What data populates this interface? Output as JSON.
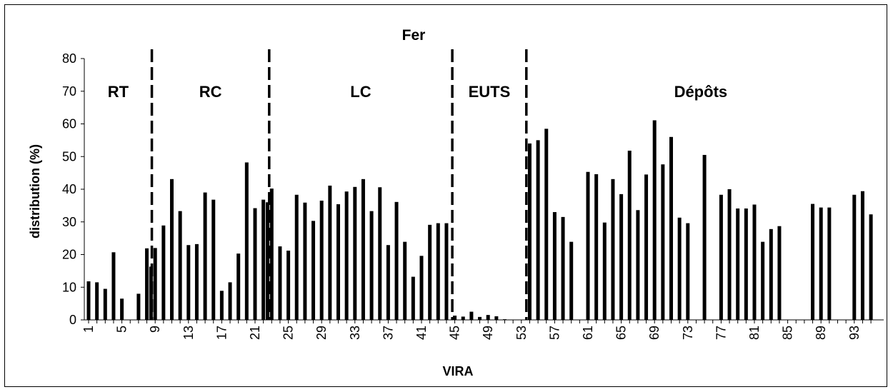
{
  "chart_data": {
    "type": "bar",
    "title": "Fer",
    "xlabel": "VIRA",
    "ylabel": "distribution (%)",
    "ylim": [
      0,
      80
    ],
    "yticks": [
      0,
      10,
      20,
      30,
      40,
      50,
      60,
      70,
      80
    ],
    "xlim": [
      1,
      95
    ],
    "xticks": [
      1,
      5,
      9,
      13,
      17,
      21,
      25,
      29,
      33,
      37,
      41,
      45,
      49,
      53,
      57,
      61,
      65,
      69,
      73,
      77,
      81,
      85,
      89,
      93
    ],
    "grid": false,
    "legend": "none",
    "bar_color": "#000000",
    "x": [
      1,
      2,
      3,
      4,
      5,
      7,
      8,
      8.5,
      9,
      10,
      11,
      12,
      13,
      14,
      15,
      16,
      17,
      18,
      19,
      20,
      21,
      22,
      22.5,
      23,
      24,
      25,
      26,
      27,
      28,
      29,
      30,
      31,
      32,
      33,
      34,
      35,
      36,
      37,
      38,
      39,
      40,
      41,
      42,
      43,
      44,
      45,
      46,
      47,
      48,
      49,
      50,
      51,
      52,
      53,
      54,
      55,
      56,
      57,
      58,
      59,
      61,
      62,
      63,
      64,
      65,
      66,
      67,
      68,
      69,
      70,
      71,
      72,
      73,
      75,
      77,
      78,
      79,
      80,
      81,
      82,
      83,
      84,
      88,
      89,
      90,
      93,
      94,
      95
    ],
    "values": [
      11.8,
      11.5,
      9.5,
      20.7,
      6.5,
      8.0,
      21.9,
      16.3,
      22.0,
      28.9,
      43.1,
      33.3,
      22.9,
      23.2,
      39.0,
      36.8,
      8.9,
      11.5,
      20.3,
      48.2,
      34.2,
      36.8,
      36.0,
      40.2,
      22.5,
      21.2,
      38.3,
      35.9,
      30.3,
      36.5,
      41.1,
      35.4,
      39.3,
      40.7,
      43.1,
      33.3,
      40.6,
      22.9,
      36.1,
      23.9,
      13.2,
      19.6,
      29.1,
      29.6,
      29.6,
      1.3,
      1.0,
      2.5,
      0.9,
      1.5,
      1.1,
      0.2,
      0.1,
      0.1,
      54.0,
      55.0,
      58.5,
      33.0,
      31.5,
      23.9,
      45.3,
      44.6,
      29.8,
      43.1,
      38.5,
      51.8,
      33.6,
      44.5,
      61.1,
      47.6,
      56.0,
      31.3,
      29.6,
      50.5,
      38.3,
      40.0,
      34.1,
      34.1,
      35.3,
      23.9,
      27.8,
      28.7,
      35.5,
      34.4,
      34.4,
      38.3,
      39.4,
      32.3
    ],
    "regions": [
      {
        "label": "RT",
        "x_from": 0.5,
        "x_to": 8.6
      },
      {
        "label": "RC",
        "x_from": 8.6,
        "x_to": 22.7
      },
      {
        "label": "LC",
        "x_from": 22.7,
        "x_to": 44.7
      },
      {
        "label": "EUTS",
        "x_from": 44.7,
        "x_to": 53.6
      },
      {
        "label": "Dépôts",
        "x_from": 53.6,
        "x_to": 95.5
      }
    ],
    "dividers_x": [
      8.6,
      22.7,
      44.7,
      53.6
    ]
  }
}
